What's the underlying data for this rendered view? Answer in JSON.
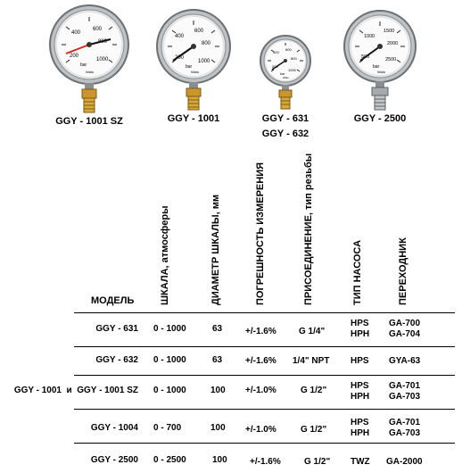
{
  "gauges": [
    {
      "caption": "GGY - 1001 SZ",
      "scale": [
        "0",
        "200",
        "400",
        "600",
        "800",
        "1000"
      ],
      "unit": "bar",
      "brand": "Walo"
    },
    {
      "caption": "GGY - 1001",
      "scale": [
        "0",
        "200",
        "400",
        "600",
        "800",
        "1000"
      ],
      "unit": "bar",
      "brand": "Walo"
    },
    {
      "caption": "GGY - 631",
      "caption2": "GGY - 632",
      "scale": [
        "0",
        "200",
        "400",
        "600",
        "800",
        "1000"
      ],
      "unit": "bar",
      "brand": "Walo"
    },
    {
      "caption": "GGY - 2500",
      "scale": [
        "0",
        "500",
        "1000",
        "1500",
        "2000",
        "2500"
      ],
      "unit": "bar",
      "brand": "Walo"
    }
  ],
  "table": {
    "model_header": "МОДЕЛЬ",
    "col_headers": [
      "ШКАЛА, атмосферы",
      "ДИАМЕТР ШКАЛЫ, мм",
      "ПОГРЕШНОСТЬ ИЗМЕРЕНИЯ",
      "ПРИСОЕДИНЕНИЕ, тип резьбы",
      "ТИП НАСОСА",
      "ПЕРЕХОДНИК"
    ],
    "rows": [
      {
        "model": "GGY - 631",
        "scale": "0 - 1000",
        "diam": "63",
        "acc": "+/-1.6%",
        "conn": "G 1/4\"",
        "pump": [
          "HPS",
          "HPH"
        ],
        "adapter": [
          "GA-700",
          "GA-704"
        ]
      },
      {
        "model": "GGY - 632",
        "scale": "0 - 1000",
        "diam": "63",
        "acc": "+/-1.6%",
        "conn": "1/4\" NPT",
        "pump": [
          "HPS"
        ],
        "adapter": [
          "GYA-63"
        ]
      },
      {
        "model": "GGY - 1001  и  GGY - 1001 SZ",
        "scale": "0 - 1000",
        "diam": "100",
        "acc": "+/-1.0%",
        "conn": "G 1/2\"",
        "pump": [
          "HPS",
          "HPH"
        ],
        "adapter": [
          "GA-701",
          "GA-703"
        ]
      },
      {
        "model": "GGY - 1004",
        "scale": "0 - 700",
        "diam": "100",
        "acc": "+/-1.0%",
        "conn": "G 1/2\"",
        "pump": [
          "HPS",
          "HPH"
        ],
        "adapter": [
          "GA-701",
          "GA-703"
        ]
      },
      {
        "model": "GGY - 2500",
        "scale": "0 - 2500",
        "diam": "100",
        "acc": "+/-1.6%",
        "conn": "G 1/2\"",
        "pump": [
          "TWZ"
        ],
        "adapter": [
          "GA-2000"
        ]
      }
    ]
  }
}
